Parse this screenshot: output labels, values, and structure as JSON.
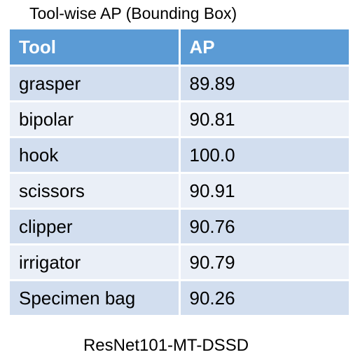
{
  "chart_data": {
    "type": "table",
    "title": "Tool-wise AP (Bounding Box)",
    "columns": [
      "Tool",
      "AP"
    ],
    "rows": [
      [
        "grasper",
        "89.89"
      ],
      [
        "bipolar",
        "90.81"
      ],
      [
        "hook",
        "100.0"
      ],
      [
        "scissors",
        "90.91"
      ],
      [
        "clipper",
        "90.76"
      ],
      [
        "irrigator",
        "90.79"
      ],
      [
        "Specimen bag",
        "90.26"
      ]
    ],
    "caption": "ResNet101-MT-DSSD"
  },
  "colors": {
    "header_bg": "#5b9bd5",
    "row_odd_bg": "#d2deef",
    "row_even_bg": "#eaeff7"
  }
}
